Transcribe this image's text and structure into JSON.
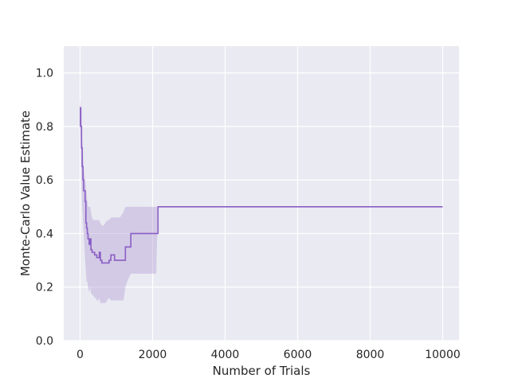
{
  "chart_data": {
    "type": "line",
    "title": "",
    "xlabel": "Number of Trials",
    "ylabel": "Monte-Carlo Value Estimate",
    "xlim": [
      -450,
      10450
    ],
    "ylim": [
      0.0,
      1.1
    ],
    "xticks": [
      0,
      2000,
      4000,
      6000,
      8000,
      10000
    ],
    "xtick_labels": [
      "0",
      "2000",
      "4000",
      "6000",
      "8000",
      "10000"
    ],
    "yticks": [
      0.0,
      0.2,
      0.4,
      0.6,
      0.8,
      1.0
    ],
    "ytick_labels": [
      "0.0",
      "0.2",
      "0.4",
      "0.6",
      "0.8",
      "1.0"
    ],
    "grid": true,
    "style": {
      "background": "#EAEAF2",
      "grid": "#FFFFFF",
      "line": "#8A5EC4",
      "band": "#B9A4D8"
    },
    "series": [
      {
        "x": [
          0,
          10,
          20,
          40,
          60,
          80,
          100,
          120,
          140,
          160,
          180,
          200,
          220,
          250,
          280,
          300,
          330,
          360,
          400,
          430,
          460,
          500,
          530,
          560,
          600,
          650,
          700,
          750,
          800,
          850,
          900,
          950,
          1000,
          1100,
          1200,
          1250,
          1300,
          1400,
          1500,
          1700,
          1900,
          2000,
          2100,
          2150,
          10000
        ],
        "y": [
          0.8,
          0.87,
          0.8,
          0.72,
          0.65,
          0.6,
          0.56,
          0.56,
          0.52,
          0.44,
          0.42,
          0.4,
          0.38,
          0.36,
          0.38,
          0.34,
          0.33,
          0.33,
          0.32,
          0.32,
          0.31,
          0.31,
          0.33,
          0.3,
          0.29,
          0.29,
          0.29,
          0.29,
          0.3,
          0.32,
          0.32,
          0.3,
          0.3,
          0.3,
          0.3,
          0.35,
          0.35,
          0.4,
          0.4,
          0.4,
          0.4,
          0.4,
          0.4,
          0.5,
          0.5
        ],
        "band_lower": [
          0.72,
          0.8,
          0.72,
          0.6,
          0.5,
          0.45,
          0.4,
          0.35,
          0.3,
          0.26,
          0.22,
          0.22,
          0.2,
          0.18,
          0.2,
          0.18,
          0.17,
          0.17,
          0.16,
          0.16,
          0.15,
          0.15,
          0.16,
          0.14,
          0.14,
          0.14,
          0.14,
          0.15,
          0.16,
          0.15,
          0.15,
          0.15,
          0.15,
          0.15,
          0.15,
          0.2,
          0.22,
          0.25,
          0.25,
          0.25,
          0.25,
          0.25,
          0.25,
          0.5,
          0.5
        ],
        "band_upper": [
          0.88,
          0.9,
          0.86,
          0.8,
          0.75,
          0.7,
          0.65,
          0.62,
          0.6,
          0.58,
          0.55,
          0.52,
          0.5,
          0.5,
          0.5,
          0.48,
          0.46,
          0.45,
          0.45,
          0.45,
          0.45,
          0.45,
          0.45,
          0.44,
          0.43,
          0.43,
          0.44,
          0.45,
          0.45,
          0.46,
          0.46,
          0.46,
          0.46,
          0.46,
          0.48,
          0.5,
          0.5,
          0.5,
          0.5,
          0.5,
          0.5,
          0.5,
          0.5,
          0.5,
          0.5
        ]
      }
    ]
  }
}
